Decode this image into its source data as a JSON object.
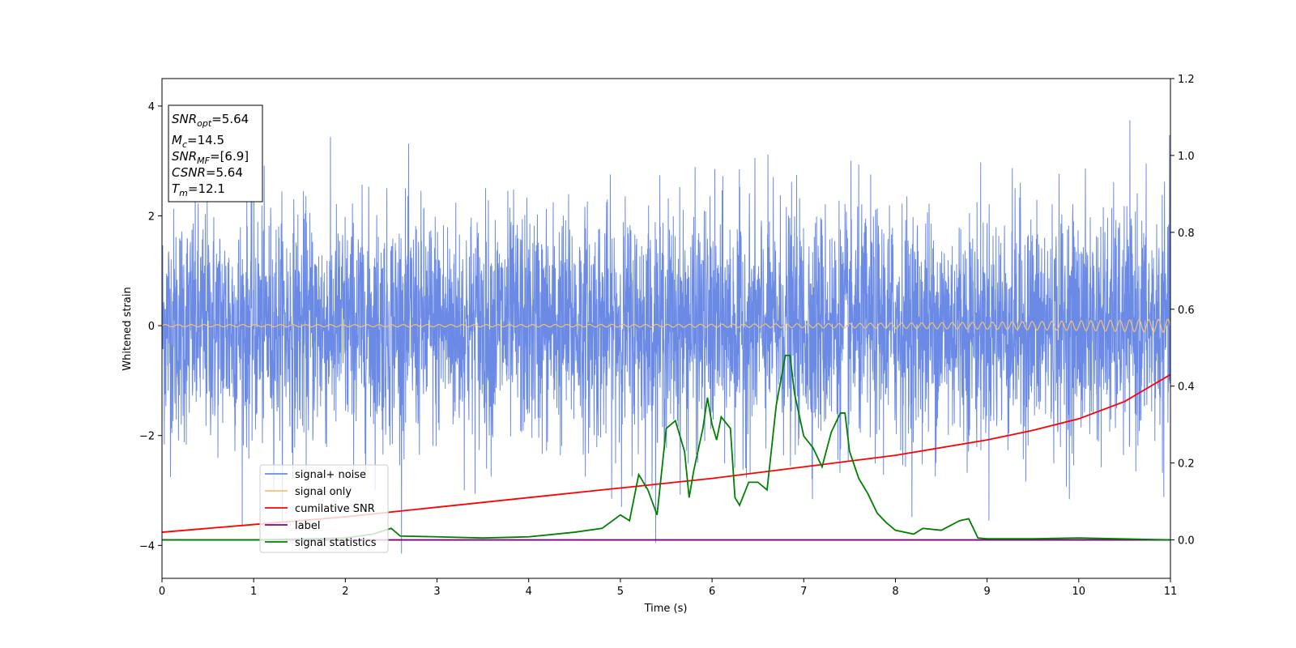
{
  "chart_data": {
    "type": "line",
    "xlabel": "Time (s)",
    "ylabel": "Whitened strain",
    "xlim": [
      0,
      11
    ],
    "ylim_left": [
      -4.6,
      4.5
    ],
    "ylim_right": [
      -0.1,
      1.2
    ],
    "x_ticks": [
      0,
      1,
      2,
      3,
      4,
      5,
      6,
      7,
      8,
      9,
      10,
      11
    ],
    "y_ticks_left": [
      -4,
      -2,
      0,
      2,
      4
    ],
    "y_ticks_right": [
      "0.0",
      "0.2",
      "0.4",
      "0.6",
      "0.8",
      "1.0",
      "1.2"
    ],
    "legend": {
      "placement": "lower-left",
      "entries": [
        {
          "label": "signal+ noise",
          "color": "#6a8ae6"
        },
        {
          "label": "signal only",
          "color": "#f5c26b"
        },
        {
          "label": "cumilative SNR",
          "color": "#ff0000"
        },
        {
          "label": "label",
          "color": "#800080"
        },
        {
          "label": "signal statistics",
          "color": "#008000"
        }
      ]
    },
    "info_box": {
      "snr_opt": {
        "main": "SNR",
        "sub": "opt",
        "value": "=5.64"
      },
      "mc": {
        "main": "M",
        "sub": "c",
        "value": "=14.5"
      },
      "snr_mf": {
        "main": "SNR",
        "sub": "MF",
        "value": "=[6.9]"
      },
      "csnr": {
        "main": "CSNR",
        "value": "=5.64"
      },
      "tm": {
        "main": "T",
        "sub": "m",
        "value": "=12.1"
      }
    },
    "series": [
      {
        "name": "signal+ noise",
        "axis": "left",
        "color": "#6a8ae6",
        "description_values": {
          "noise_std": 1.05,
          "x_start": 0,
          "x_end": 11
        }
      },
      {
        "name": "signal only",
        "axis": "left",
        "color": "#f5c26b",
        "amplitude_start": 0.02,
        "amplitude_end": 0.12
      },
      {
        "name": "cumilative SNR",
        "axis": "right",
        "color": "#ff0000",
        "x": [
          0,
          1,
          2,
          3,
          4,
          5,
          6,
          7,
          8,
          9,
          9.5,
          10,
          10.5,
          11
        ],
        "y": [
          0.02,
          0.04,
          0.06,
          0.085,
          0.11,
          0.135,
          0.16,
          0.19,
          0.22,
          0.26,
          0.285,
          0.315,
          0.36,
          0.43
        ]
      },
      {
        "name": "label",
        "axis": "right",
        "color": "#800080",
        "x": [
          0,
          11
        ],
        "y": [
          0.0,
          0.0
        ]
      },
      {
        "name": "signal statistics",
        "axis": "right",
        "color": "#008000",
        "x": [
          0,
          1,
          2,
          2.3,
          2.5,
          2.6,
          3,
          3.5,
          4,
          4.5,
          4.8,
          5.0,
          5.1,
          5.2,
          5.3,
          5.4,
          5.5,
          5.6,
          5.7,
          5.75,
          5.8,
          5.9,
          5.95,
          6.0,
          6.05,
          6.1,
          6.2,
          6.25,
          6.3,
          6.4,
          6.5,
          6.6,
          6.7,
          6.8,
          6.85,
          6.9,
          7.0,
          7.1,
          7.2,
          7.3,
          7.4,
          7.45,
          7.5,
          7.6,
          7.7,
          7.8,
          7.9,
          8.0,
          8.2,
          8.3,
          8.5,
          8.7,
          8.8,
          8.9,
          9.0,
          9.5,
          10,
          11
        ],
        "y": [
          0.0,
          0.0,
          0.005,
          0.015,
          0.03,
          0.01,
          0.008,
          0.005,
          0.008,
          0.02,
          0.03,
          0.065,
          0.05,
          0.17,
          0.13,
          0.065,
          0.29,
          0.31,
          0.23,
          0.11,
          0.18,
          0.29,
          0.37,
          0.3,
          0.26,
          0.32,
          0.29,
          0.11,
          0.09,
          0.15,
          0.15,
          0.13,
          0.35,
          0.48,
          0.48,
          0.38,
          0.27,
          0.24,
          0.19,
          0.28,
          0.33,
          0.33,
          0.23,
          0.16,
          0.12,
          0.07,
          0.045,
          0.025,
          0.015,
          0.03,
          0.025,
          0.05,
          0.055,
          0.005,
          0.003,
          0.003,
          0.005,
          0.0
        ]
      }
    ]
  }
}
